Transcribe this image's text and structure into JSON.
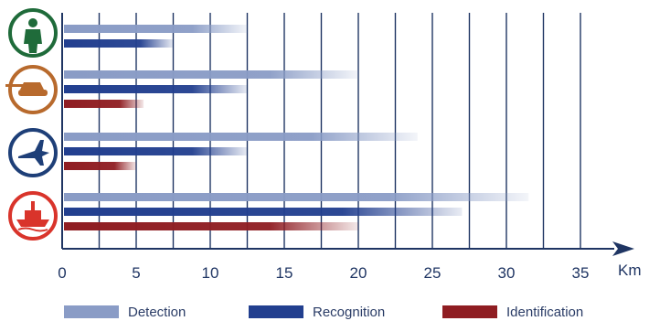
{
  "chart_data": {
    "type": "bar",
    "orientation": "horizontal",
    "categories": [
      "soldier",
      "tank",
      "aircraft",
      "ship"
    ],
    "icons": [
      "soldier-icon",
      "tank-icon",
      "jet-icon",
      "ship-icon"
    ],
    "icon_colors": [
      "#1f6b3a",
      "#b86a2d",
      "#1e3f78",
      "#d9342b"
    ],
    "series": [
      {
        "name": "Detection",
        "color": "#8a9cc6",
        "values": [
          12.5,
          20,
          24,
          31.5
        ]
      },
      {
        "name": "Recognition",
        "color": "#223f8f",
        "values": [
          7.5,
          12.5,
          12.5,
          27
        ]
      },
      {
        "name": "Identification",
        "color": "#8f1d22",
        "values": [
          null,
          5.5,
          5,
          20
        ]
      }
    ],
    "xlim": [
      0,
      37
    ],
    "xticks": [
      "0",
      "5",
      "10",
      "15",
      "20",
      "25",
      "30",
      "35"
    ],
    "xlabel": "Km",
    "grid": true,
    "legend_position": "bottom"
  }
}
